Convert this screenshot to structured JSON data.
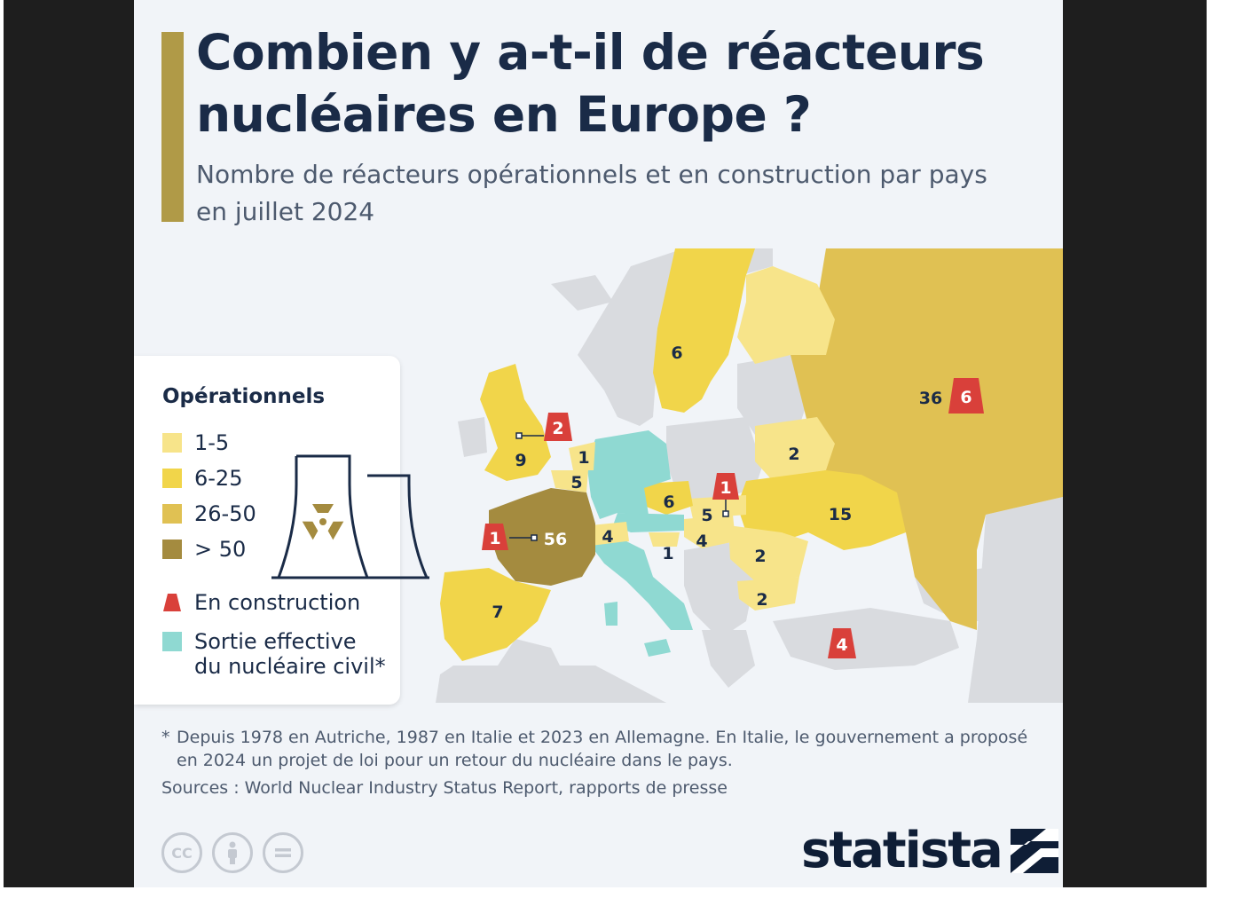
{
  "title": "Combien y a-t-il de réacteurs nucléaires en Europe ?",
  "subtitle": "Nombre de réacteurs opérationnels et en construction par pays en juillet 2024",
  "legend": {
    "title": "Opérationnels",
    "bins": [
      {
        "label": "1-5",
        "color": "#f7e48a"
      },
      {
        "label": "6-25",
        "color": "#f1d54a"
      },
      {
        "label": "26-50",
        "color": "#e0c153"
      },
      {
        "label": "> 50",
        "color": "#a48b3f"
      }
    ],
    "construction": {
      "label": "En construction",
      "color": "#d9403a"
    },
    "exit": {
      "label": "Sortie effective du nucléaire civil*",
      "color": "#8fd9d2"
    },
    "icon": "radiation-cooling-tower-icon"
  },
  "countries": [
    {
      "name": "France",
      "operational": "56",
      "construction": "1",
      "bin": "> 50"
    },
    {
      "name": "Russia",
      "operational": "36",
      "construction": "6",
      "bin": "26-50"
    },
    {
      "name": "Ukraine",
      "operational": "15",
      "construction": null,
      "bin": "6-25"
    },
    {
      "name": "United Kingdom",
      "operational": "9",
      "construction": "2",
      "bin": "6-25"
    },
    {
      "name": "Spain",
      "operational": "7",
      "construction": null,
      "bin": "6-25"
    },
    {
      "name": "Sweden",
      "operational": "6",
      "construction": null,
      "bin": "6-25"
    },
    {
      "name": "Czechia",
      "operational": "6",
      "construction": null,
      "bin": "6-25"
    },
    {
      "name": "Slovakia",
      "operational": "5",
      "construction": "1",
      "bin": "1-5"
    },
    {
      "name": "Belgium",
      "operational": "5",
      "construction": null,
      "bin": "1-5"
    },
    {
      "name": "Hungary",
      "operational": "4",
      "construction": null,
      "bin": "1-5"
    },
    {
      "name": "Switzerland",
      "operational": "4",
      "construction": null,
      "bin": "1-5"
    },
    {
      "name": "Belarus",
      "operational": "2",
      "construction": null,
      "bin": "1-5"
    },
    {
      "name": "Romania",
      "operational": "2",
      "construction": null,
      "bin": "1-5"
    },
    {
      "name": "Bulgaria",
      "operational": "2",
      "construction": null,
      "bin": "1-5"
    },
    {
      "name": "Netherlands",
      "operational": "1",
      "construction": null,
      "bin": "1-5"
    },
    {
      "name": "Slovenia",
      "operational": "1",
      "construction": null,
      "bin": "1-5"
    },
    {
      "name": "Finland",
      "operational": "",
      "construction": null,
      "bin": "1-5"
    },
    {
      "name": "Turkey",
      "operational": "",
      "construction": "4",
      "bin": "none"
    },
    {
      "name": "Germany",
      "operational": "",
      "construction": null,
      "bin": "exit"
    },
    {
      "name": "Italy",
      "operational": "",
      "construction": null,
      "bin": "exit"
    },
    {
      "name": "Austria",
      "operational": "",
      "construction": null,
      "bin": "exit"
    }
  ],
  "footnote_star": "*",
  "footnote": "Depuis 1978 en Autriche, 1987 en Italie et 2023 en Allemagne. En Italie, le gouvernement a proposé en 2024 un projet de loi pour un retour du nucléaire dans le pays.",
  "sources": "Sources : World Nuclear Industry Status Report, rapports de presse",
  "license_icons": [
    "cc-icon",
    "attribution-icon",
    "no-derivatives-icon"
  ],
  "cc_label": "CC",
  "brand": "statista",
  "colors": {
    "accent": "#b09a47",
    "title": "#1a2b47",
    "background": "#f1f4f8",
    "no_data": "#d9dbdf",
    "construction": "#d9403a"
  }
}
